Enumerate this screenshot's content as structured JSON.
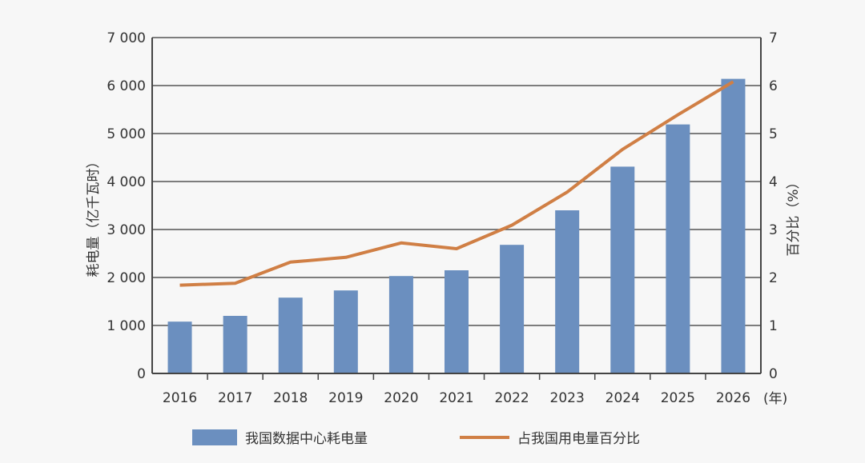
{
  "chart_data": {
    "type": "bar+line",
    "categories": [
      "2016",
      "2017",
      "2018",
      "2019",
      "2020",
      "2021",
      "2022",
      "2023",
      "2024",
      "2025",
      "2026"
    ],
    "x_unit": "(年)",
    "series": [
      {
        "name": "我国数据中心耗电量",
        "type": "bar",
        "axis": "left",
        "color": "#6b8fbf",
        "values": [
          1080,
          1200,
          1580,
          1730,
          2030,
          2150,
          2680,
          3400,
          4310,
          5190,
          6140
        ]
      },
      {
        "name": "占我国用电量百分比",
        "type": "line",
        "axis": "right",
        "color": "#d07f45",
        "values": [
          1.84,
          1.88,
          2.32,
          2.42,
          2.72,
          2.6,
          3.09,
          3.78,
          4.67,
          5.39,
          6.08
        ]
      }
    ],
    "ylabel": "耗电量（亿千瓦时）",
    "ylim": [
      0,
      7000
    ],
    "yticks": [
      "0",
      "1 000",
      "2 000",
      "3 000",
      "4 000",
      "5 000",
      "6 000",
      "7 000"
    ],
    "y2label": "百分比（%）",
    "y2lim": [
      0,
      7
    ],
    "y2ticks": [
      "0",
      "1",
      "2",
      "3",
      "4",
      "5",
      "6",
      "7"
    ],
    "grid": true,
    "legend_position": "bottom"
  }
}
